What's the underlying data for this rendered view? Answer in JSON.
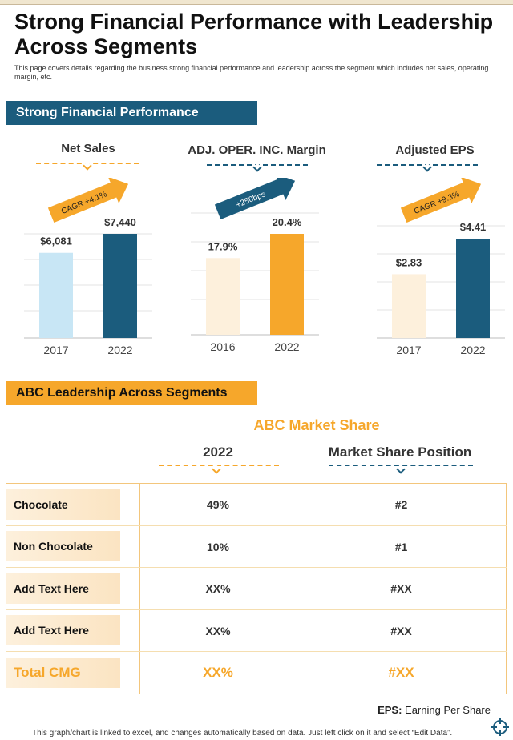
{
  "page": {
    "title": "Strong Financial Performance with Leadership Across Segments",
    "subtitle": "This page covers details regarding the business strong financial performance and leadership across the segment which includes net sales, operating margin, etc."
  },
  "section1": {
    "banner": "Strong Financial Performance"
  },
  "chart_data": [
    {
      "type": "bar",
      "title": "Net Sales",
      "categories": [
        "2017",
        "2022"
      ],
      "values": [
        6081,
        7440
      ],
      "value_labels": [
        "$6,081",
        "$7,440"
      ],
      "bar_colors": [
        "#c8e6f5",
        "#1b5c7d"
      ],
      "arrow_label": "CAGR +4.1%",
      "accent": "#f6a72b"
    },
    {
      "type": "bar",
      "title": "ADJ. OPER. INC. Margin",
      "categories": [
        "2016",
        "2022"
      ],
      "values": [
        17.9,
        20.4
      ],
      "value_labels": [
        "17.9%",
        "20.4%"
      ],
      "bar_colors": [
        "#fdf0dc",
        "#f6a72b"
      ],
      "arrow_label": "+250bps",
      "accent": "#1b5c7d"
    },
    {
      "type": "bar",
      "title": "Adjusted EPS",
      "categories": [
        "2017",
        "2022"
      ],
      "values": [
        2.83,
        4.41
      ],
      "value_labels": [
        "$2.83",
        "$4.41"
      ],
      "bar_colors": [
        "#fdf0dc",
        "#1b5c7d"
      ],
      "arrow_label": "CAGR +9.3%",
      "accent": "#f6a72b"
    }
  ],
  "section2": {
    "banner": "ABC Leadership Across Segments",
    "market_title": "ABC Market Share",
    "col1": "2022",
    "col2": "Market Share Position",
    "rows": [
      {
        "label": "Chocolate",
        "share": "49%",
        "position": "#2"
      },
      {
        "label": "Non Chocolate",
        "share": "10%",
        "position": "#1"
      },
      {
        "label": "Add Text Here",
        "share": "XX%",
        "position": "#XX"
      },
      {
        "label": "Add Text Here",
        "share": "XX%",
        "position": "#XX"
      },
      {
        "label": "Total CMG",
        "share": "XX%",
        "position": "#XX"
      }
    ]
  },
  "notes": {
    "eps_abbr": "EPS:",
    "eps_text": " Earning Per Share",
    "footer": "This graph/chart is linked to excel, and changes automatically based on data. Just left click on it and select “Edit Data”."
  },
  "colors": {
    "blue": "#1b5c7d",
    "orange": "#f6a72b",
    "light_blue": "#c8e6f5",
    "cream": "#fdf0dc"
  }
}
